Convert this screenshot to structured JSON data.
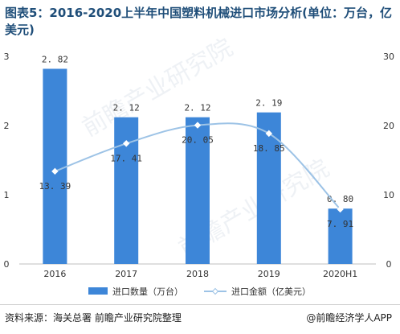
{
  "title": "图表5：2016-2020上半年中国塑料机械进口市场分析(单位：万台，亿美元)",
  "source": "资料来源：海关总署 前瞻产业研究院整理",
  "brand": "@前瞻经济学人APP",
  "chart_data": {
    "type": "bar",
    "categories": [
      "2016",
      "2017",
      "2018",
      "2019",
      "2020H1"
    ],
    "series": [
      {
        "name": "进口数量（万台）",
        "kind": "bar",
        "axis": "left",
        "values": [
          2.82,
          2.12,
          2.12,
          2.19,
          0.8
        ],
        "labels": [
          "2. 82",
          "2. 12",
          "2. 12",
          "2. 19",
          "0. 80"
        ],
        "color": "#3d86d8"
      },
      {
        "name": "进口金额（亿美元）",
        "kind": "line",
        "axis": "right",
        "values": [
          13.39,
          17.41,
          20.05,
          18.85,
          7.91
        ],
        "labels": [
          "13. 39",
          "17. 41",
          "20. 05",
          "18. 85",
          "7. 91"
        ],
        "color": "#9dc3e6"
      }
    ],
    "y_left": {
      "ylim": [
        0,
        3
      ],
      "ticks": [
        "0",
        "1",
        "2",
        "3"
      ]
    },
    "y_right": {
      "ylim": [
        0,
        30
      ],
      "ticks": [
        "0",
        "10",
        "20",
        "30"
      ]
    },
    "grid": false,
    "legend": "bottom"
  }
}
